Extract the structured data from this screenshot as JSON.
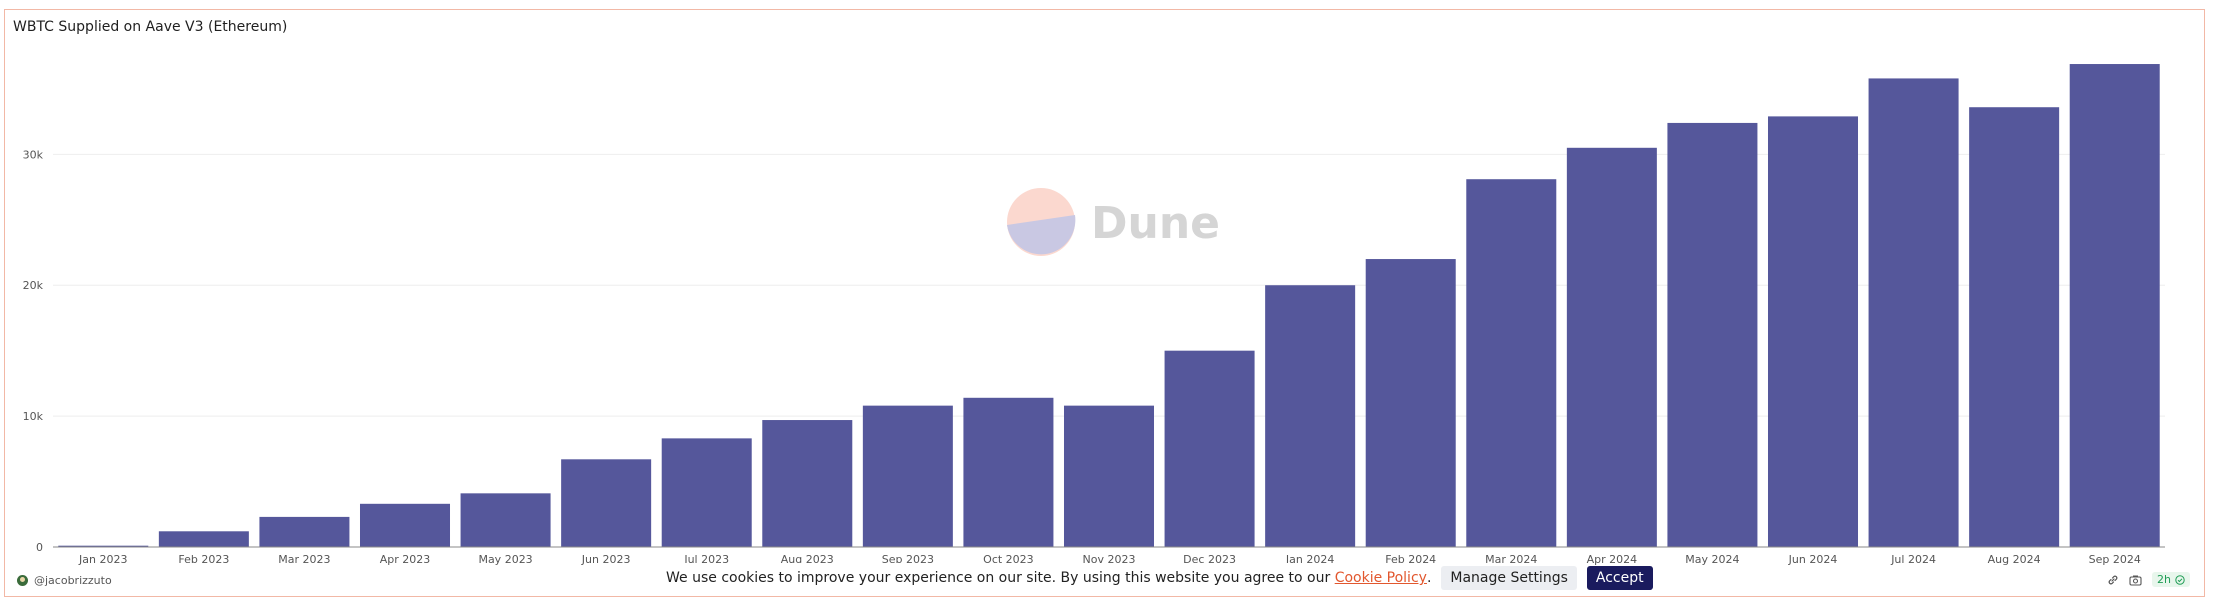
{
  "chart_title": "WBTC Supplied on Aave V3 (Ethereum)",
  "author": "@jacobrizzuto",
  "watermark": "Dune",
  "age_badge": "2h",
  "cookie": {
    "text": "We use cookies to improve your experience on our site. By using this website you agree to our",
    "link_text": "Cookie Policy",
    "after_link": ".",
    "manage_label": "Manage Settings",
    "accept_label": "Accept"
  },
  "colors": {
    "bar": "#55579b",
    "grid": "#eeeeee",
    "axis_text": "#555555",
    "border": "#f2b8a6"
  },
  "chart_data": {
    "type": "bar",
    "title": "WBTC Supplied on Aave V3 (Ethereum)",
    "categories": [
      "Jan 2023",
      "Feb 2023",
      "Mar 2023",
      "Apr 2023",
      "May 2023",
      "Jun 2023",
      "Jul 2023",
      "Aug 2023",
      "Sep 2023",
      "Oct 2023",
      "Nov 2023",
      "Dec 2023",
      "Jan 2024",
      "Feb 2024",
      "Mar 2024",
      "Apr 2024",
      "May 2024",
      "Jun 2024",
      "Jul 2024",
      "Aug 2024",
      "Sep 2024"
    ],
    "values": [
      100,
      1200,
      2300,
      3300,
      4100,
      6700,
      8300,
      9700,
      10800,
      11400,
      10800,
      15000,
      20000,
      22000,
      28100,
      30500,
      32400,
      32900,
      35800,
      33600,
      36900
    ],
    "yticks": [
      0,
      10000,
      20000,
      30000
    ],
    "ytick_labels": [
      "0",
      "10k",
      "20k",
      "30k"
    ],
    "ylim": [
      0,
      39500
    ],
    "grid": true,
    "legend": "none"
  }
}
